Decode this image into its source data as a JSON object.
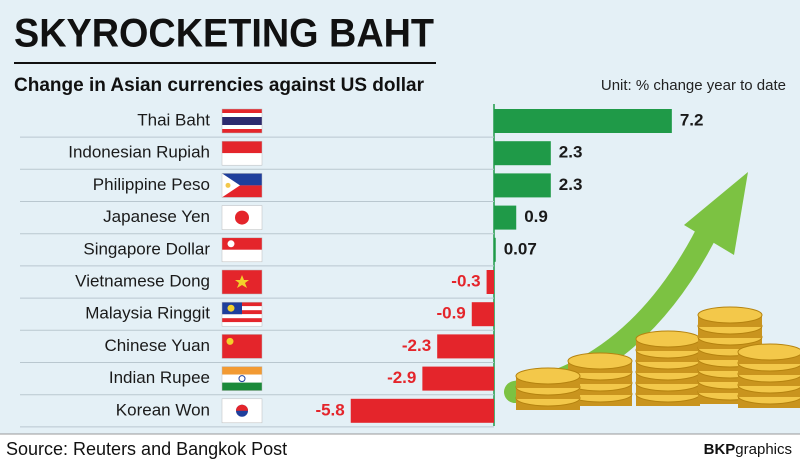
{
  "chart_data": {
    "type": "bar",
    "orientation": "horizontal",
    "title": "SKYROCKETING BAHT",
    "subtitle": "Change in Asian currencies against US dollar",
    "unit": "Unit: % change year to date",
    "categories": [
      "Thai Baht",
      "Indonesian Rupiah",
      "Philippine Peso",
      "Japanese Yen",
      "Singapore Dollar",
      "Vietnamese Dong",
      "Malaysia Ringgit",
      "Chinese Yuan",
      "Indian Rupee",
      "Korean Won"
    ],
    "values": [
      7.2,
      2.3,
      2.3,
      0.9,
      0.07,
      -0.3,
      -0.9,
      -2.3,
      -2.9,
      -5.8
    ],
    "positive_color": "#1f9a48",
    "negative_color": "#e4252b",
    "source": "Source: Reuters and Bangkok Post",
    "credit": {
      "bold": "BKP",
      "rest": "graphics"
    }
  }
}
